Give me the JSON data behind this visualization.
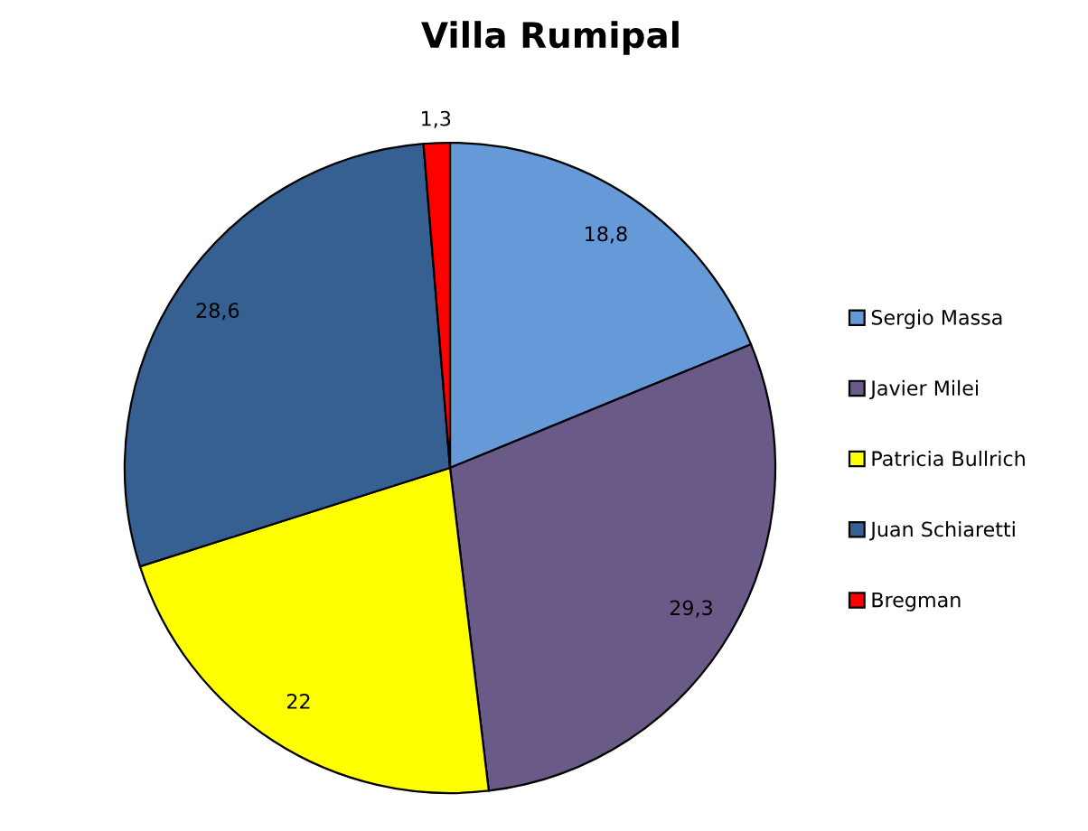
{
  "chart_data": {
    "type": "pie",
    "title": "Villa Rumipal",
    "categories": [
      "Sergio Massa",
      "Javier Milei",
      "Patricia Bullrich",
      "Juan Schiaretti",
      "Bregman"
    ],
    "values": [
      18.8,
      29.3,
      22,
      28.6,
      1.3
    ],
    "colors": [
      "#6699d8",
      "#6a5a88",
      "#ffff00",
      "#376092",
      "#ff0000"
    ],
    "value_labels": [
      "18,8",
      "29,3",
      "22",
      "28,6",
      "1,3"
    ],
    "legend": "right"
  }
}
